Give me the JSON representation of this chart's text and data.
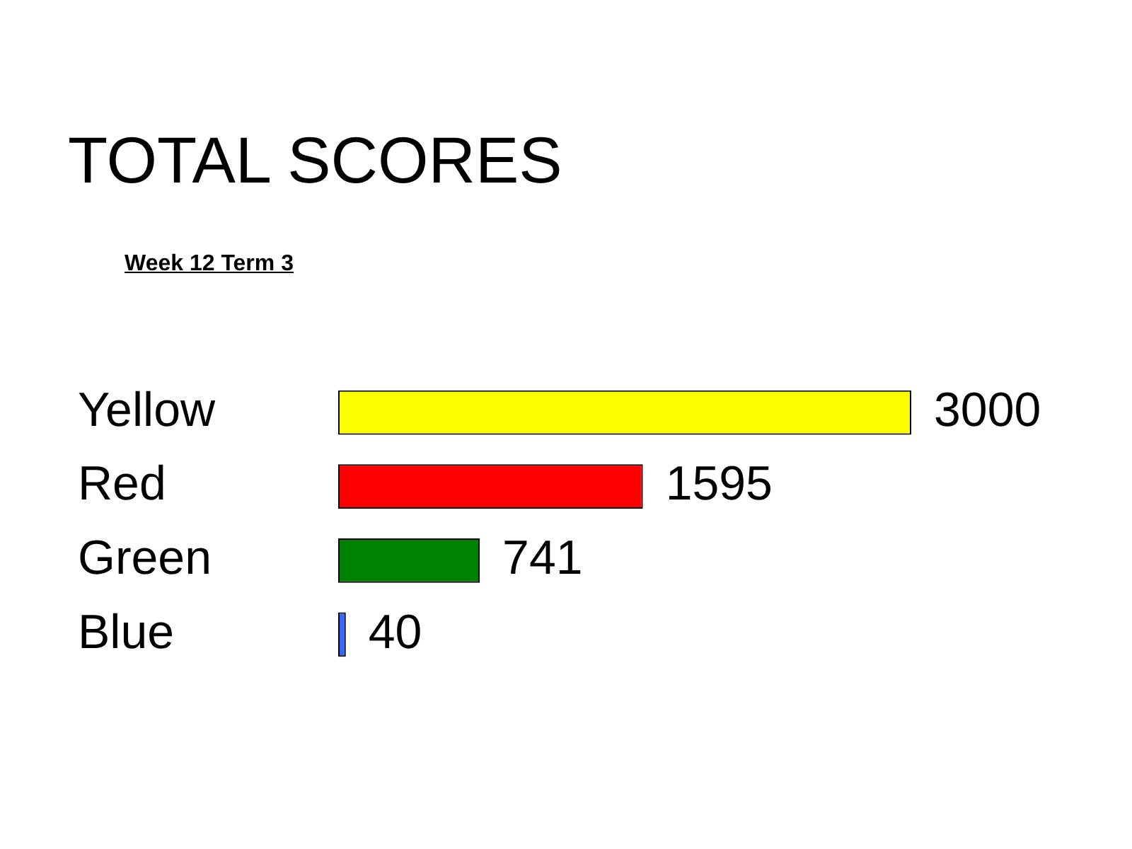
{
  "chart_data": {
    "type": "bar",
    "orientation": "horizontal",
    "title": "TOTAL SCORES",
    "subtitle": "Week 12 Term 3",
    "categories": [
      "Yellow",
      "Red",
      "Green",
      "Blue"
    ],
    "values": [
      3000,
      1595,
      741,
      40
    ],
    "colors": [
      "#ffff00",
      "#ff0000",
      "#008000",
      "#3366ff"
    ],
    "data_labels": true
  }
}
